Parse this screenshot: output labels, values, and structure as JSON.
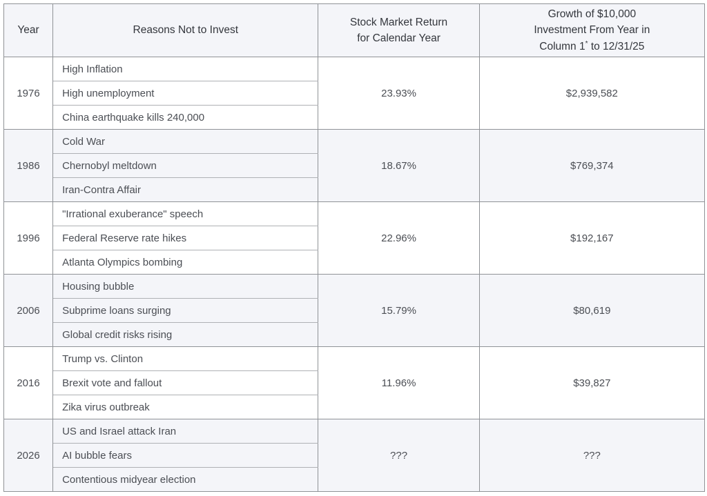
{
  "chart_data": {
    "type": "table",
    "columns": [
      "Year",
      "Reasons Not to Invest",
      "Stock Market Return for Calendar Year",
      "Growth of $10,000 Investment From Year in Column 1* to 12/31/25"
    ],
    "rows": [
      {
        "year": "1976",
        "reasons": [
          "High Inflation",
          "High unemployment",
          "China earthquake kills 240,000"
        ],
        "return": "23.93%",
        "growth": "$2,939,582"
      },
      {
        "year": "1986",
        "reasons": [
          "Cold War",
          "Chernobyl meltdown",
          "Iran-Contra Affair"
        ],
        "return": "18.67%",
        "growth": "$769,374"
      },
      {
        "year": "1996",
        "reasons": [
          "\"Irrational exuberance\" speech",
          "Federal Reserve rate hikes",
          "Atlanta Olympics bombing"
        ],
        "return": "22.96%",
        "growth": "$192,167"
      },
      {
        "year": "2006",
        "reasons": [
          "Housing bubble",
          "Subprime loans surging",
          "Global credit risks rising"
        ],
        "return": "15.79%",
        "growth": "$80,619"
      },
      {
        "year": "2016",
        "reasons": [
          "Trump vs. Clinton",
          "Brexit vote and fallout",
          "Zika virus outbreak"
        ],
        "return": "11.96%",
        "growth": "$39,827"
      },
      {
        "year": "2026",
        "reasons": [
          "US and Israel attack Iran",
          "AI bubble fears",
          "Contentious midyear election"
        ],
        "return": "???",
        "growth": "???"
      }
    ]
  },
  "header": {
    "year": "Year",
    "reasons": "Reasons Not to Invest",
    "return": "Stock Market Return for Calendar Year",
    "growth_pre": "Growth of $10,000 Investment From Year in Column 1",
    "growth_sup": "*",
    "growth_post": " to 12/31/25"
  },
  "colors": {
    "shaded_row_bg": "#f4f5f9",
    "border_major": "#8f9296",
    "border_minor": "#aeb0b4",
    "header_text": "#33363c",
    "body_text": "#4b4e54"
  }
}
